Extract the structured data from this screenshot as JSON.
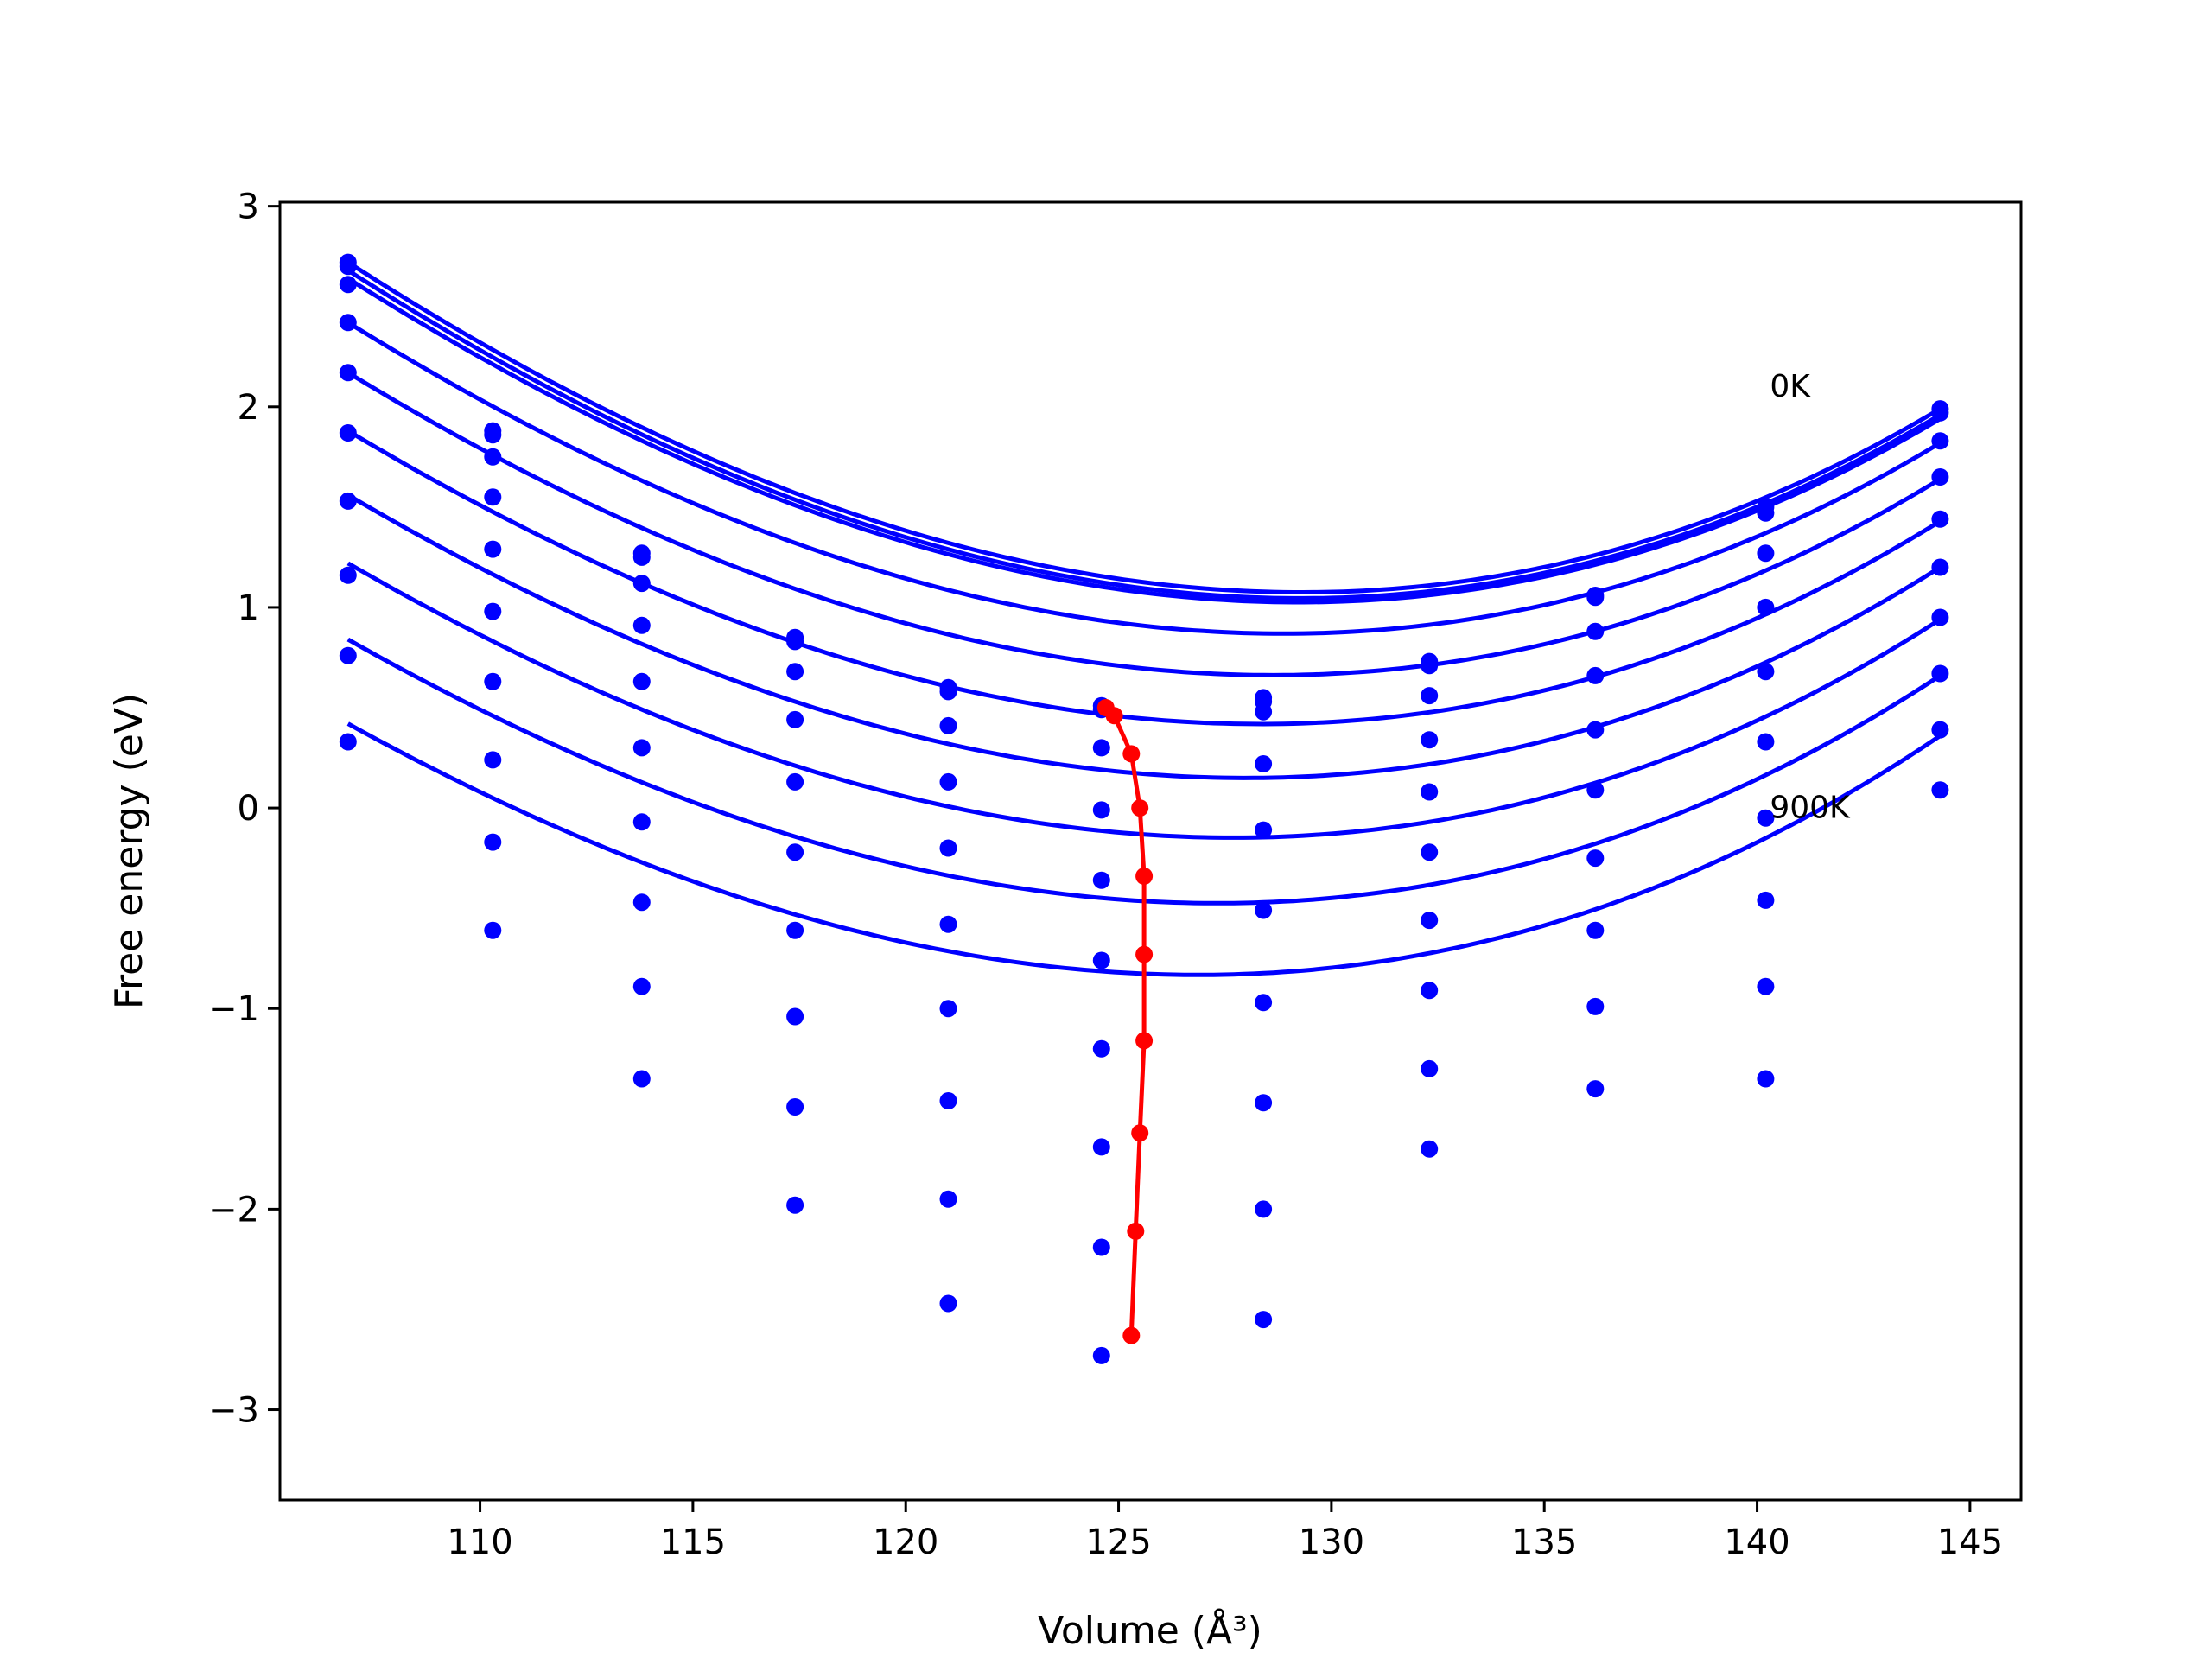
{
  "chart_data": {
    "type": "line",
    "title": "",
    "xlabel": "Volume (Å³)",
    "ylabel": "Free energy (eV)",
    "xlim": [
      105.3,
      146.2
    ],
    "ylim": [
      -3.45,
      3.02
    ],
    "xticks": [
      110,
      115,
      120,
      125,
      130,
      135,
      140,
      145
    ],
    "yticks": [
      -3,
      -2,
      -1,
      0,
      1,
      2,
      3
    ],
    "xtick_labels": [
      "110",
      "115",
      "120",
      "125",
      "130",
      "135",
      "140",
      "145"
    ],
    "ytick_labels": [
      "−3",
      "−2",
      "−1",
      "0",
      "1",
      "2",
      "3"
    ],
    "grid": false,
    "legend": "none",
    "colors": {
      "series": "#0000ff",
      "minimum": "#ff0000",
      "frame": "#000000"
    },
    "annotations": [
      {
        "text": "0K",
        "x": 140.3,
        "y": 2.05
      },
      {
        "text": "900K",
        "x": 140.3,
        "y": -0.05
      }
    ],
    "volumes": [
      106.9,
      110.3,
      113.8,
      117.4,
      121.0,
      124.6,
      128.4,
      132.3,
      136.2,
      140.2,
      144.3
    ],
    "series": [
      {
        "values": [
          2.72,
          1.88,
          1.27,
          0.85,
          0.6,
          0.51,
          0.55,
          0.73,
          1.06,
          1.5,
          1.99
        ]
      },
      {
        "values": [
          2.7,
          1.86,
          1.25,
          0.83,
          0.58,
          0.49,
          0.53,
          0.71,
          1.05,
          1.47,
          1.97
        ]
      },
      {
        "values": [
          2.61,
          1.75,
          1.12,
          0.68,
          0.41,
          0.3,
          0.48,
          0.56,
          0.88,
          1.27,
          1.83
        ]
      },
      {
        "values": [
          2.42,
          1.55,
          0.91,
          0.44,
          0.13,
          -0.01,
          0.22,
          0.34,
          0.66,
          1.0,
          1.65
        ]
      },
      {
        "values": [
          2.17,
          1.29,
          0.63,
          0.13,
          -0.2,
          -0.36,
          -0.11,
          0.08,
          0.39,
          0.68,
          1.44
        ]
      },
      {
        "values": [
          1.87,
          0.98,
          0.3,
          -0.22,
          -0.58,
          -0.76,
          -0.51,
          -0.22,
          0.09,
          0.33,
          1.2
        ]
      },
      {
        "values": [
          1.53,
          0.63,
          -0.07,
          -0.61,
          -1.0,
          -1.2,
          -0.97,
          -0.56,
          -0.25,
          -0.05,
          0.95
        ]
      },
      {
        "values": [
          1.16,
          0.24,
          -0.47,
          -1.04,
          -1.46,
          -1.69,
          -1.47,
          -0.91,
          -0.61,
          -0.46,
          0.67
        ]
      },
      {
        "values": [
          0.76,
          -0.17,
          -0.89,
          -1.49,
          -1.95,
          -2.19,
          -2.0,
          -1.3,
          -0.99,
          -0.89,
          0.39
        ]
      },
      {
        "values": [
          0.33,
          -0.61,
          -1.35,
          -1.98,
          -2.47,
          -2.73,
          -2.55,
          -1.7,
          -1.4,
          -1.35,
          0.09
        ]
      }
    ],
    "fits": [
      {
        "vmin": 124.7,
        "fmin": 0.5,
        "a": 0.00346,
        "b": 2.1e-05,
        "start": 2.72,
        "end": 1.99
      },
      {
        "vmin": 124.9,
        "fmin": 0.46,
        "a": 0.00346,
        "b": 2.1e-05,
        "start": 2.68,
        "end": 1.96
      },
      {
        "vmin": 125.3,
        "fmin": 0.27,
        "a": 0.00346,
        "b": 2.1e-05,
        "start": 2.64,
        "end": 1.94
      },
      {
        "vmin": 125.5,
        "fmin": 0.0,
        "a": 0.00346,
        "b": 2.1e-05,
        "start": 2.42,
        "end": 1.82
      },
      {
        "vmin": 125.6,
        "fmin": -0.34,
        "a": 0.00346,
        "b": 2.1e-05,
        "start": 2.17,
        "end": 1.64
      },
      {
        "vmin": 125.6,
        "fmin": -0.73,
        "a": 0.00346,
        "b": 2.1e-05,
        "start": 1.88,
        "end": 1.43
      },
      {
        "vmin": 125.6,
        "fmin": -1.16,
        "a": 0.00346,
        "b": 2.1e-05,
        "start": 1.56,
        "end": 1.2
      },
      {
        "vmin": 125.5,
        "fmin": -1.62,
        "a": 0.00346,
        "b": 2.1e-05,
        "start": 1.22,
        "end": 0.94
      },
      {
        "vmin": 125.4,
        "fmin": -2.11,
        "a": 0.00346,
        "b": 2.1e-05,
        "start": 0.84,
        "end": 0.66
      },
      {
        "vmin": 125.3,
        "fmin": -2.63,
        "a": 0.00346,
        "b": 2.1e-05,
        "start": 0.42,
        "end": 0.36
      }
    ]
  }
}
